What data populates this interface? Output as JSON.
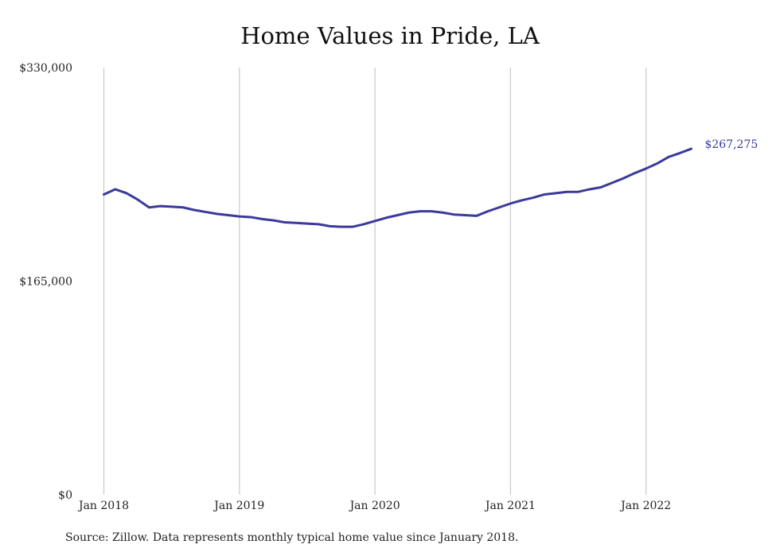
{
  "chart_data": {
    "type": "line",
    "title": "Home Values in Pride, LA",
    "xlabel": "",
    "ylabel": "",
    "x_tick_labels": [
      "Jan 2018",
      "Jan 2019",
      "Jan 2020",
      "Jan 2021",
      "Jan 2022"
    ],
    "y_tick_labels": [
      "$0",
      "$165,000",
      "$330,000"
    ],
    "ylim": [
      0,
      330000
    ],
    "xlim": [
      "2018-01",
      "2022-05"
    ],
    "grid": "vertical",
    "line_color": "#3a3a9c",
    "last_value_label": "$267,275",
    "series": [
      {
        "x": [
          "2018-01",
          "2018-02",
          "2018-03",
          "2018-04",
          "2018-05",
          "2018-06",
          "2018-07",
          "2018-08",
          "2018-09",
          "2018-10",
          "2018-11",
          "2018-12",
          "2019-01",
          "2019-02",
          "2019-03",
          "2019-04",
          "2019-05",
          "2019-06",
          "2019-07",
          "2019-08",
          "2019-09",
          "2019-10",
          "2019-11",
          "2019-12",
          "2020-01",
          "2020-02",
          "2020-03",
          "2020-04",
          "2020-05",
          "2020-06",
          "2020-07",
          "2020-08",
          "2020-09",
          "2020-10",
          "2020-11",
          "2020-12",
          "2021-01",
          "2021-02",
          "2021-03",
          "2021-04",
          "2021-05",
          "2021-06",
          "2021-07",
          "2021-08",
          "2021-09",
          "2021-10",
          "2021-11",
          "2021-12",
          "2022-01",
          "2022-02",
          "2022-03",
          "2022-04",
          "2022-05"
        ],
        "values": [
          232000,
          236000,
          233000,
          228000,
          222000,
          223000,
          222500,
          222000,
          220000,
          218500,
          217000,
          216000,
          215000,
          214500,
          213000,
          212000,
          210500,
          210000,
          209500,
          209000,
          207500,
          207000,
          207000,
          209000,
          211500,
          214000,
          216000,
          218000,
          219000,
          219000,
          218000,
          216500,
          216000,
          215500,
          219000,
          222000,
          225000,
          227500,
          229500,
          232000,
          233000,
          234000,
          234000,
          236000,
          237500,
          241000,
          244500,
          248500,
          252000,
          256000,
          261000,
          264000,
          267275
        ]
      }
    ]
  },
  "source_text": "Source: Zillow. Data represents monthly typical home value since January 2018."
}
